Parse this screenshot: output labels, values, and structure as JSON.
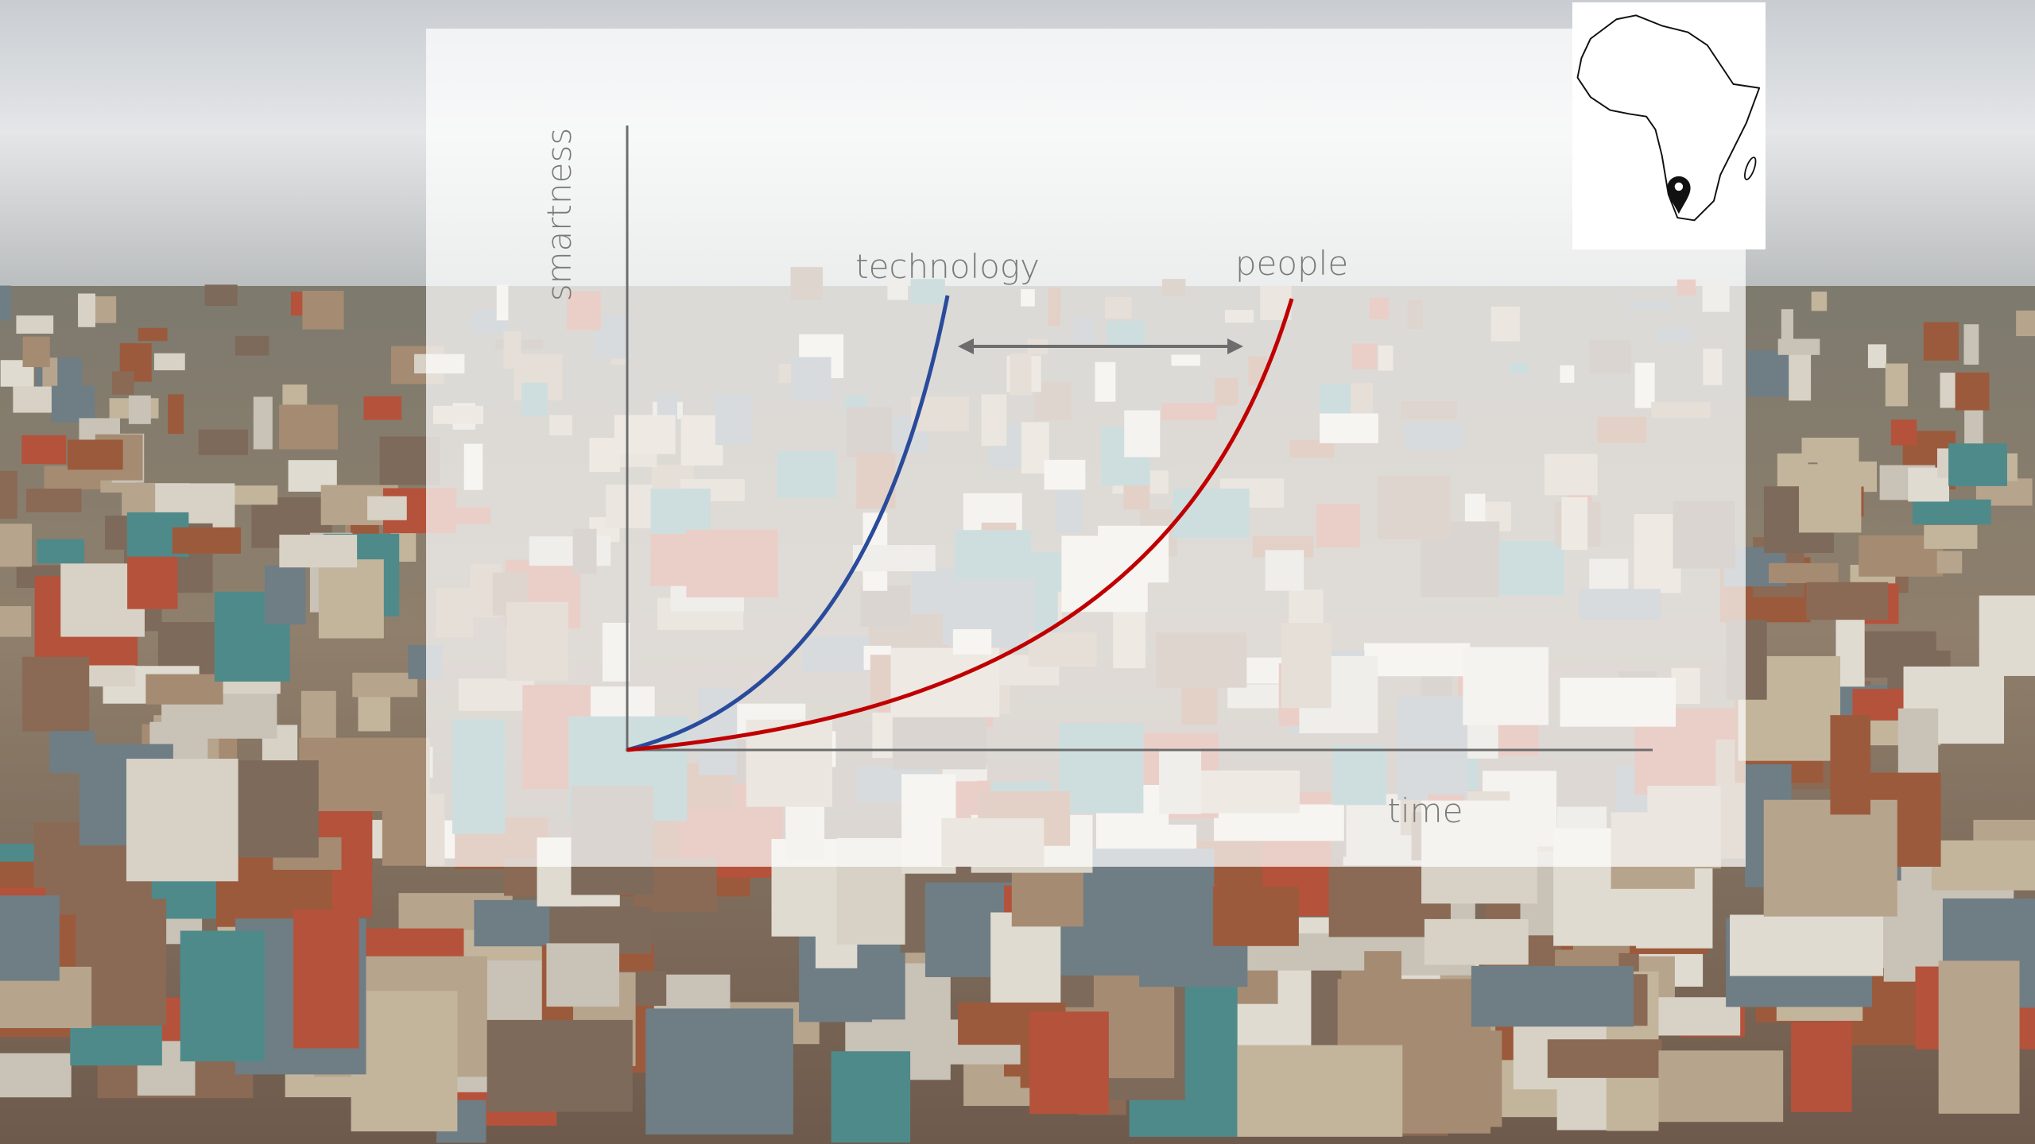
{
  "y_axis_label": "smartness",
  "x_axis_label": "time",
  "curves": [
    {
      "label": "technology"
    },
    {
      "label": "people"
    }
  ]
}
